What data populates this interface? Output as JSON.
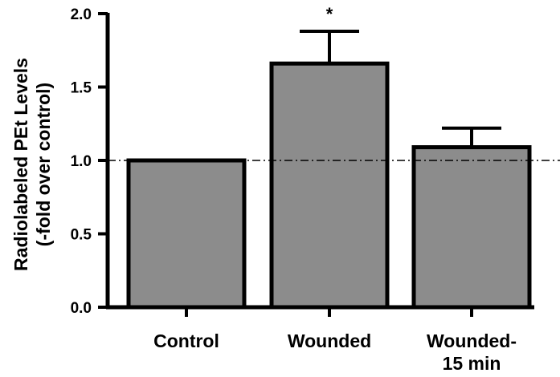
{
  "chart_data": {
    "type": "bar",
    "title": "",
    "xlabel": "",
    "ylabel": {
      "line1": "Radiolabeled PEt Levels",
      "line2": "(-fold over control)"
    },
    "categories": [
      {
        "line1": "Control",
        "line2": ""
      },
      {
        "line1": "Wounded",
        "line2": ""
      },
      {
        "line1": "Wounded-",
        "line2": "15 min"
      }
    ],
    "values": [
      1.0,
      1.66,
      1.09
    ],
    "error_upper": [
      0.0,
      0.22,
      0.13
    ],
    "annotations": [
      "",
      "*",
      ""
    ],
    "ylim": [
      0,
      2.0
    ],
    "yticks": [
      "0.0",
      "0.5",
      "1.0",
      "1.5",
      "2.0"
    ],
    "reference_line": 1.0,
    "grid": false,
    "colors": {
      "bar": "#8c8c8c",
      "edge": "#000000",
      "reference": "#000000"
    }
  }
}
